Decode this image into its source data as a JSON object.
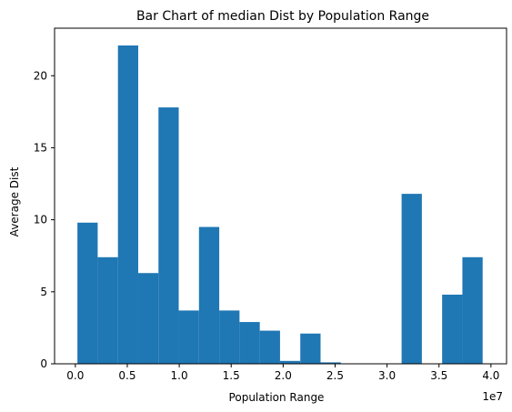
{
  "chart_data": {
    "type": "bar",
    "title": "Bar Chart of median Dist by Population Range",
    "xlabel": "Population Range",
    "ylabel": "Average Dist",
    "x_offset_label": "1e7",
    "xlim": [
      -0.2,
      4.15
    ],
    "ylim": [
      0,
      23.3
    ],
    "x_ticks": [
      0.0,
      0.5,
      1.0,
      1.5,
      2.0,
      2.5,
      3.0,
      3.5,
      4.0
    ],
    "x_tick_labels": [
      "0.0",
      "0.5",
      "1.0",
      "1.5",
      "2.0",
      "2.5",
      "3.0",
      "3.5",
      "4.0"
    ],
    "y_ticks": [
      0,
      5,
      10,
      15,
      20
    ],
    "y_tick_labels": [
      "0",
      "5",
      "10",
      "15",
      "20"
    ],
    "grid": false,
    "bar_color": "#1f77b4",
    "bars": [
      {
        "x0": 0.02,
        "x1": 0.215,
        "value": 9.8
      },
      {
        "x0": 0.215,
        "x1": 0.41,
        "value": 7.4
      },
      {
        "x0": 0.41,
        "x1": 0.605,
        "value": 22.1
      },
      {
        "x0": 0.605,
        "x1": 0.8,
        "value": 6.3
      },
      {
        "x0": 0.8,
        "x1": 0.995,
        "value": 17.8
      },
      {
        "x0": 0.995,
        "x1": 1.19,
        "value": 3.7
      },
      {
        "x0": 1.19,
        "x1": 1.385,
        "value": 9.5
      },
      {
        "x0": 1.385,
        "x1": 1.58,
        "value": 3.7
      },
      {
        "x0": 1.58,
        "x1": 1.775,
        "value": 2.9
      },
      {
        "x0": 1.775,
        "x1": 1.97,
        "value": 2.3
      },
      {
        "x0": 1.97,
        "x1": 2.165,
        "value": 0.2
      },
      {
        "x0": 2.165,
        "x1": 2.36,
        "value": 2.1
      },
      {
        "x0": 2.36,
        "x1": 2.555,
        "value": 0.1
      },
      {
        "x0": 3.14,
        "x1": 3.335,
        "value": 11.8
      },
      {
        "x0": 3.53,
        "x1": 3.725,
        "value": 4.8
      },
      {
        "x0": 3.725,
        "x1": 3.92,
        "value": 7.4
      }
    ]
  }
}
